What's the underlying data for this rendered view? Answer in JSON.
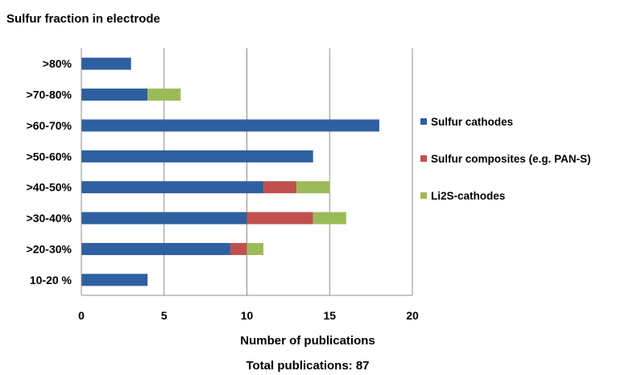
{
  "chart_data": {
    "type": "bar",
    "orientation": "horizontal",
    "stacked": true,
    "title": "Sulfur fraction in electrode",
    "xlabel": "Number of publications",
    "ylabel": "",
    "footer": "Total publications: 87",
    "categories": [
      ">80%",
      ">70-80%",
      ">60-70%",
      ">50-60%",
      ">40-50%",
      ">30-40%",
      ">20-30%",
      "10-20 %"
    ],
    "series": [
      {
        "name": "Sulfur cathodes",
        "color": "#2e5fa0",
        "values": [
          3,
          4,
          18,
          14,
          11,
          10,
          9,
          4
        ]
      },
      {
        "name": "Sulfur composites (e.g. PAN-S)",
        "color": "#c0504d",
        "values": [
          0,
          0,
          0,
          0,
          2,
          4,
          1,
          0
        ]
      },
      {
        "name": "Li2S-cathodes",
        "color": "#9bbb59",
        "values": [
          0,
          2,
          0,
          0,
          2,
          2,
          1,
          0
        ]
      }
    ],
    "xlim": [
      0,
      20
    ],
    "xticks": [
      "0",
      "5",
      "10",
      "15",
      "20"
    ],
    "xtick_values": [
      0,
      5,
      10,
      15,
      20
    ],
    "grid": true,
    "legend_position": "right"
  }
}
